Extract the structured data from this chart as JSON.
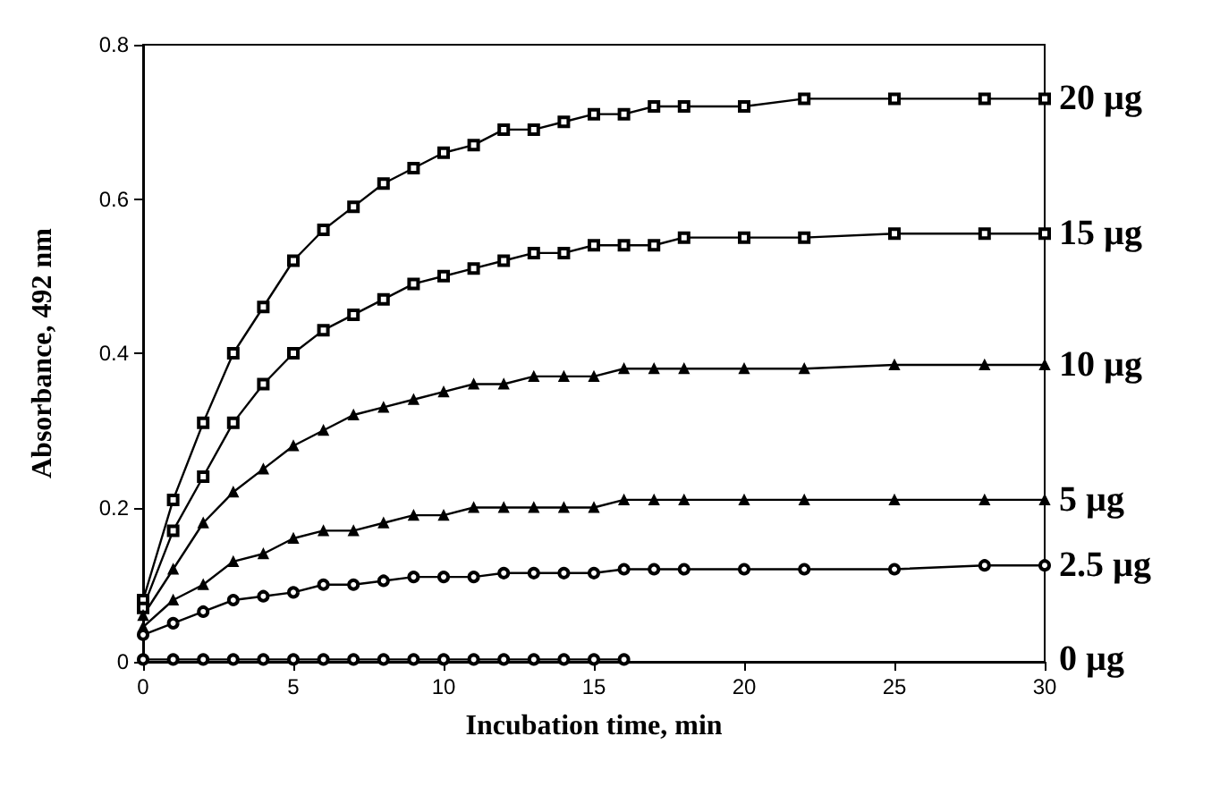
{
  "chart_data": {
    "type": "line",
    "xlabel": "Incubation time, min",
    "ylabel": "Absorbance, 492 nm",
    "x": [
      0,
      1,
      2,
      3,
      4,
      5,
      6,
      7,
      8,
      9,
      10,
      11,
      12,
      13,
      14,
      15,
      16,
      17,
      18,
      20,
      22,
      25,
      28,
      30
    ],
    "xlim": [
      0,
      30
    ],
    "xticks": [
      0,
      5,
      10,
      15,
      20,
      25,
      30
    ],
    "ylim": [
      0,
      0.8
    ],
    "yticks": [
      0,
      0.2,
      0.4,
      0.6,
      0.8
    ],
    "grid": false,
    "legend": "right",
    "series": [
      {
        "name": "20 µg",
        "color": "#000000",
        "marker": "square",
        "values": [
          0.08,
          0.21,
          0.31,
          0.4,
          0.46,
          0.52,
          0.56,
          0.59,
          0.62,
          0.64,
          0.66,
          0.67,
          0.69,
          0.69,
          0.7,
          0.71,
          0.71,
          0.72,
          0.72,
          0.72,
          0.73,
          0.73,
          0.73,
          0.73
        ]
      },
      {
        "name": "15 µg",
        "color": "#000000",
        "marker": "square",
        "values": [
          0.07,
          0.17,
          0.24,
          0.31,
          0.36,
          0.4,
          0.43,
          0.45,
          0.47,
          0.49,
          0.5,
          0.51,
          0.52,
          0.53,
          0.53,
          0.54,
          0.54,
          0.54,
          0.55,
          0.55,
          0.55,
          0.555,
          0.555,
          0.555
        ]
      },
      {
        "name": "10 µg",
        "color": "#000000",
        "marker": "triangle",
        "values": [
          0.06,
          0.12,
          0.18,
          0.22,
          0.25,
          0.28,
          0.3,
          0.32,
          0.33,
          0.34,
          0.35,
          0.36,
          0.36,
          0.37,
          0.37,
          0.37,
          0.38,
          0.38,
          0.38,
          0.38,
          0.38,
          0.385,
          0.385,
          0.385
        ]
      },
      {
        "name": "5 µg",
        "color": "#000000",
        "marker": "triangle",
        "values": [
          0.045,
          0.08,
          0.1,
          0.13,
          0.14,
          0.16,
          0.17,
          0.17,
          0.18,
          0.19,
          0.19,
          0.2,
          0.2,
          0.2,
          0.2,
          0.2,
          0.21,
          0.21,
          0.21,
          0.21,
          0.21,
          0.21,
          0.21,
          0.21
        ]
      },
      {
        "name": "2.5 µg",
        "color": "#000000",
        "marker": "circle",
        "values": [
          0.035,
          0.05,
          0.065,
          0.08,
          0.085,
          0.09,
          0.1,
          0.1,
          0.105,
          0.11,
          0.11,
          0.11,
          0.115,
          0.115,
          0.115,
          0.115,
          0.12,
          0.12,
          0.12,
          0.12,
          0.12,
          0.12,
          0.125,
          0.125
        ]
      },
      {
        "name": "0 µg",
        "color": "#000000",
        "marker": "circle",
        "values": [
          0.003,
          0.003,
          0.003,
          0.003,
          0.003,
          0.003,
          0.003,
          0.003,
          0.003,
          0.003,
          0.003,
          0.003,
          0.003,
          0.003,
          0.003,
          0.003,
          0.003,
          null,
          null,
          null,
          null,
          null,
          null,
          null
        ]
      }
    ]
  }
}
